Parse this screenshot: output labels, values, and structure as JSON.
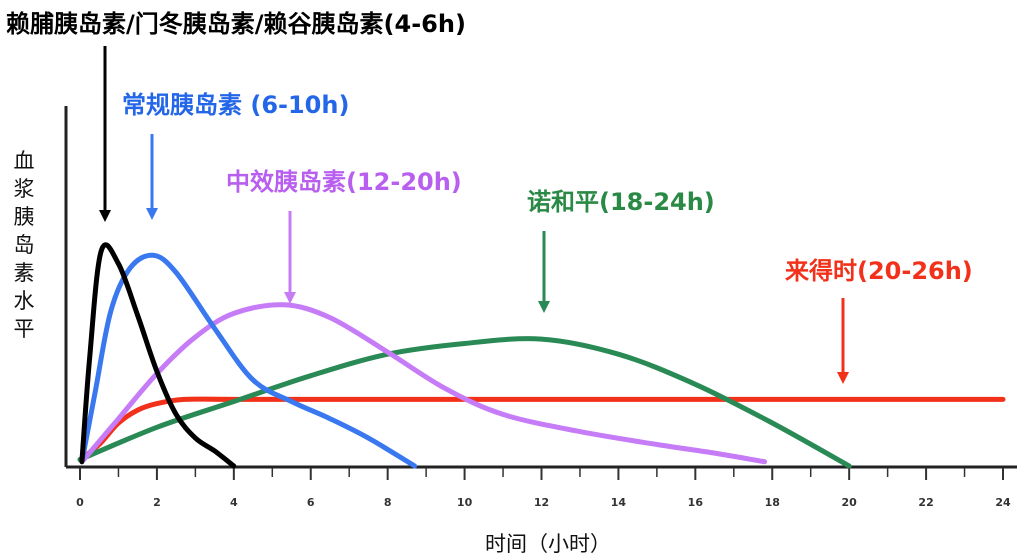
{
  "chart_data": {
    "type": "line",
    "xlabel": "时间（小时）",
    "ylabel": "血浆胰岛素水平",
    "xlim": [
      0,
      24
    ],
    "x_ticks": [
      0,
      2,
      4,
      6,
      8,
      10,
      12,
      14,
      16,
      18,
      20,
      22,
      24
    ],
    "y_ticks_shown": false,
    "grid": false,
    "legend": "none (annotations with arrows)",
    "series": [
      {
        "name": "赖脯胰岛素/门冬胰岛素/赖谷胰岛素(4-6h)",
        "color": "#000000",
        "label_color": "#000000",
        "x": [
          0.05,
          0.25,
          0.55,
          1.0,
          1.5,
          2.0,
          2.5,
          3.0,
          3.5,
          4.0
        ],
        "y": [
          0.02,
          0.5,
          1.0,
          0.94,
          0.7,
          0.44,
          0.24,
          0.13,
          0.07,
          0.0
        ],
        "peak_arrow_x": 0.7
      },
      {
        "name": "常规胰岛素 (6-10h)",
        "color": "#3a78f0",
        "label_color": "#2366e8",
        "x": [
          0.05,
          0.4,
          0.8,
          1.3,
          1.9,
          2.5,
          3.5,
          4.5,
          5.5,
          6.5,
          7.5,
          8.7
        ],
        "y": [
          0.02,
          0.35,
          0.72,
          0.92,
          0.98,
          0.9,
          0.64,
          0.4,
          0.3,
          0.22,
          0.13,
          0.0
        ],
        "peak_arrow_x": 1.9
      },
      {
        "name": "中效胰岛素(12-20h)",
        "color": "#c67cf6",
        "label_color": "#b95ff0",
        "x": [
          0.1,
          1.0,
          2.0,
          3.0,
          4.0,
          5.3,
          6.5,
          8.0,
          9.5,
          11.0,
          13.0,
          15.0,
          16.5,
          17.8
        ],
        "y": [
          0.03,
          0.22,
          0.43,
          0.6,
          0.71,
          0.75,
          0.69,
          0.53,
          0.36,
          0.24,
          0.16,
          0.1,
          0.06,
          0.02
        ],
        "peak_arrow_x": 5.3
      },
      {
        "name": "诺和平(18-24h)",
        "color": "#2a8a55",
        "label_color": "#2a8a45",
        "x": [
          0.0,
          2.0,
          4.0,
          6.0,
          8.0,
          10.0,
          12.0,
          14.0,
          16.0,
          18.0,
          20.0
        ],
        "y": [
          0.03,
          0.18,
          0.3,
          0.42,
          0.52,
          0.57,
          0.59,
          0.52,
          0.38,
          0.2,
          0.0
        ],
        "peak_arrow_x": 12.0
      },
      {
        "name": "来得时(20-26h)",
        "color": "#f2311b",
        "label_color": "#f2311b",
        "x": [
          0.0,
          0.5,
          1.0,
          1.5,
          2.0,
          2.7,
          4.0,
          8.0,
          12.0,
          16.0,
          20.0,
          24.0
        ],
        "y": [
          0.03,
          0.1,
          0.2,
          0.26,
          0.29,
          0.31,
          0.31,
          0.31,
          0.31,
          0.31,
          0.31,
          0.31
        ],
        "peak_arrow_x": 20.5
      }
    ]
  }
}
